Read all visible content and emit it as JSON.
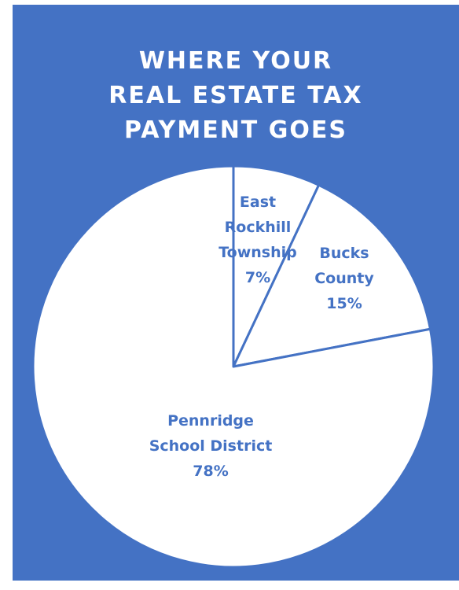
{
  "colors": {
    "background": "#4472c4",
    "slice_fill": "#ffffff",
    "slice_stroke": "#4472c4",
    "label": "#4472c4",
    "title": "#ffffff"
  },
  "chart_data": {
    "type": "pie",
    "title_lines": [
      "WHERE YOUR",
      "REAL ESTATE TAX",
      "PAYMENT GOES"
    ],
    "start": "12 o'clock",
    "direction": "clockwise",
    "slices": [
      {
        "label_lines": [
          "East",
          "Rockhill",
          "Township",
          "7%"
        ],
        "value": 7
      },
      {
        "label_lines": [
          "Bucks",
          "County",
          "15%"
        ],
        "value": 15
      },
      {
        "label_lines": [
          "Pennridge",
          "School District",
          "78%"
        ],
        "value": 78
      }
    ]
  }
}
